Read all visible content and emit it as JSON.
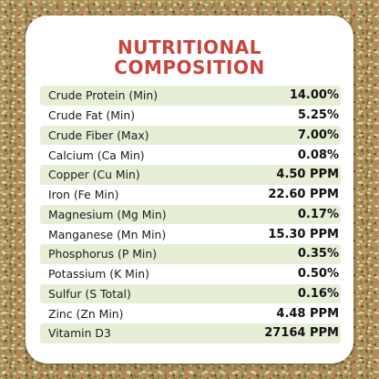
{
  "title_line1": "NUTRITIONAL",
  "title_line2": "COMPOSITION",
  "colors": {
    "title": "#c8453d",
    "row_stripe": "#e6eed6",
    "card": "#ffffff"
  },
  "rows": [
    {
      "name": "Crude Protein (Min)",
      "value": "14.00%"
    },
    {
      "name": "Crude Fat (Min)",
      "value": "5.25%"
    },
    {
      "name": "Crude Fiber (Max)",
      "value": "7.00%"
    },
    {
      "name": "Calcium (Ca Min)",
      "value": "0.08%"
    },
    {
      "name": "Copper (Cu Min)",
      "value": "4.50 PPM"
    },
    {
      "name": "Iron (Fe Min)",
      "value": "22.60 PPM"
    },
    {
      "name": "Magnesium (Mg Min)",
      "value": "0.17%"
    },
    {
      "name": "Manganese (Mn Min)",
      "value": "15.30 PPM"
    },
    {
      "name": "Phosphorus (P Min)",
      "value": "0.35%"
    },
    {
      "name": "Potassium (K Min)",
      "value": "0.50%"
    },
    {
      "name": "Sulfur (S Total)",
      "value": "0.16%"
    },
    {
      "name": "Zinc (Zn Min)",
      "value": "4.48 PPM"
    },
    {
      "name": "Vitamin D3",
      "value": "27164 PPM"
    }
  ]
}
